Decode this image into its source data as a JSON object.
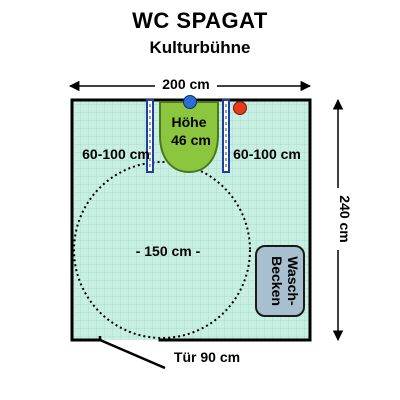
{
  "header": {
    "title": "WC SPAGAT",
    "subtitle": "Kulturbühne"
  },
  "dimensions": {
    "width_label": "200 cm",
    "height_label": "240 cm",
    "left_clearance": "60-100 cm",
    "right_clearance": "60-100 cm",
    "turning_circle": "- 150 cm -",
    "door_label": "Tür 90 cm"
  },
  "toilet": {
    "height_line1": "Höhe",
    "height_line2": "46 cm"
  },
  "sink": {
    "line1": "Wasch-",
    "line2": "Becken"
  },
  "colors": {
    "floor": "#c8efe2",
    "tile_grid": "#a8ded0",
    "toilet_fill": "#8cc63e",
    "toilet_stroke": "#4a7a1c",
    "sink_fill": "#a7bfcf",
    "grab_bar": "#1f3fa0",
    "flush_blue": "#2a6fd1",
    "flush_red": "#e23a1a",
    "wall": "#000000"
  }
}
